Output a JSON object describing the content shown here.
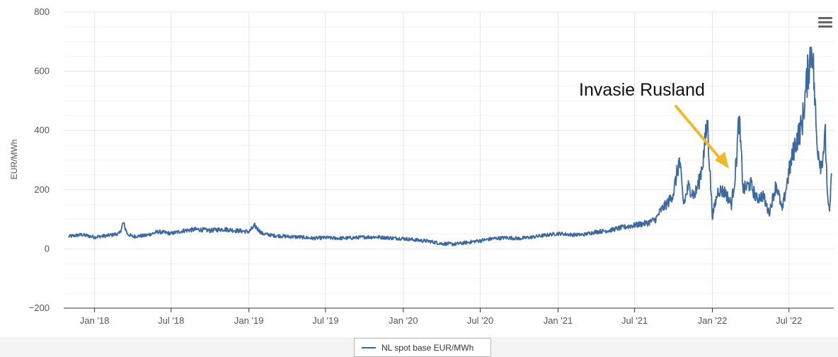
{
  "menu_icon": "hamburger-menu-icon",
  "annotation": {
    "text": "Invasie Rusland",
    "color": "#f0b929"
  },
  "legend": {
    "label": "NL spot base EUR/MWh"
  },
  "chart_data": {
    "type": "line",
    "ylabel": "EUR/MWh",
    "xlabel": "",
    "title": "",
    "ylim": [
      -200,
      800
    ],
    "y_ticks": [
      800,
      600,
      400,
      200,
      0,
      -200
    ],
    "y_tick_labels": [
      "800",
      "600",
      "400",
      "200",
      "0",
      "−200"
    ],
    "x_ticks": [
      "2018-01-01",
      "2018-07-01",
      "2019-01-01",
      "2019-07-01",
      "2020-01-01",
      "2020-07-01",
      "2021-01-01",
      "2021-07-01",
      "2022-01-01",
      "2022-07-01"
    ],
    "x_tick_labels": [
      "Jan '18",
      "Jul '18",
      "Jan '19",
      "Jul '19",
      "Jan '20",
      "Jul '20",
      "Jan '21",
      "Jul '21",
      "Jan '22",
      "Jul '22"
    ],
    "xlim": [
      "2017-10-20",
      "2022-10-15"
    ],
    "grid": true,
    "legend_position": "bottom-center",
    "series": [
      {
        "name": "NL spot base EUR/MWh",
        "color": "#3d69a0",
        "points": [
          [
            "2017-11-01",
            42
          ],
          [
            "2017-12-01",
            48
          ],
          [
            "2018-01-01",
            40
          ],
          [
            "2018-02-01",
            45
          ],
          [
            "2018-03-01",
            52
          ],
          [
            "2018-03-10",
            88
          ],
          [
            "2018-03-20",
            50
          ],
          [
            "2018-04-01",
            42
          ],
          [
            "2018-05-01",
            45
          ],
          [
            "2018-06-01",
            58
          ],
          [
            "2018-07-01",
            52
          ],
          [
            "2018-08-01",
            62
          ],
          [
            "2018-09-01",
            66
          ],
          [
            "2018-10-01",
            62
          ],
          [
            "2018-11-01",
            67
          ],
          [
            "2018-12-01",
            62
          ],
          [
            "2019-01-01",
            58
          ],
          [
            "2019-01-15",
            78
          ],
          [
            "2019-02-01",
            52
          ],
          [
            "2019-03-01",
            45
          ],
          [
            "2019-04-01",
            42
          ],
          [
            "2019-05-01",
            40
          ],
          [
            "2019-06-01",
            36
          ],
          [
            "2019-07-01",
            38
          ],
          [
            "2019-08-01",
            36
          ],
          [
            "2019-09-01",
            37
          ],
          [
            "2019-10-01",
            40
          ],
          [
            "2019-11-01",
            40
          ],
          [
            "2019-12-01",
            37
          ],
          [
            "2020-01-01",
            35
          ],
          [
            "2020-02-01",
            30
          ],
          [
            "2020-03-01",
            26
          ],
          [
            "2020-04-01",
            18
          ],
          [
            "2020-05-01",
            16
          ],
          [
            "2020-06-01",
            22
          ],
          [
            "2020-07-01",
            28
          ],
          [
            "2020-08-01",
            35
          ],
          [
            "2020-09-01",
            38
          ],
          [
            "2020-10-01",
            35
          ],
          [
            "2020-11-01",
            40
          ],
          [
            "2020-12-01",
            46
          ],
          [
            "2021-01-01",
            52
          ],
          [
            "2021-02-01",
            48
          ],
          [
            "2021-03-01",
            48
          ],
          [
            "2021-04-01",
            58
          ],
          [
            "2021-05-01",
            62
          ],
          [
            "2021-06-01",
            72
          ],
          [
            "2021-07-01",
            80
          ],
          [
            "2021-08-01",
            88
          ],
          [
            "2021-08-20",
            100
          ],
          [
            "2021-09-01",
            130
          ],
          [
            "2021-09-20",
            160
          ],
          [
            "2021-10-01",
            190
          ],
          [
            "2021-10-15",
            300
          ],
          [
            "2021-10-25",
            150
          ],
          [
            "2021-11-05",
            210
          ],
          [
            "2021-11-20",
            180
          ],
          [
            "2021-12-01",
            230
          ],
          [
            "2021-12-10",
            300
          ],
          [
            "2021-12-20",
            430
          ],
          [
            "2022-01-01",
            110
          ],
          [
            "2022-01-15",
            200
          ],
          [
            "2022-02-01",
            190
          ],
          [
            "2022-02-15",
            150
          ],
          [
            "2022-02-24",
            250
          ],
          [
            "2022-03-05",
            440
          ],
          [
            "2022-03-15",
            200
          ],
          [
            "2022-04-01",
            220
          ],
          [
            "2022-04-15",
            170
          ],
          [
            "2022-05-01",
            180
          ],
          [
            "2022-05-15",
            120
          ],
          [
            "2022-06-01",
            220
          ],
          [
            "2022-06-15",
            130
          ],
          [
            "2022-07-01",
            260
          ],
          [
            "2022-07-15",
            350
          ],
          [
            "2022-08-01",
            420
          ],
          [
            "2022-08-15",
            600
          ],
          [
            "2022-08-25",
            695
          ],
          [
            "2022-09-05",
            360
          ],
          [
            "2022-09-15",
            280
          ],
          [
            "2022-09-25",
            380
          ],
          [
            "2022-10-01",
            160
          ],
          [
            "2022-10-05",
            120
          ],
          [
            "2022-10-10",
            255
          ]
        ]
      }
    ]
  }
}
